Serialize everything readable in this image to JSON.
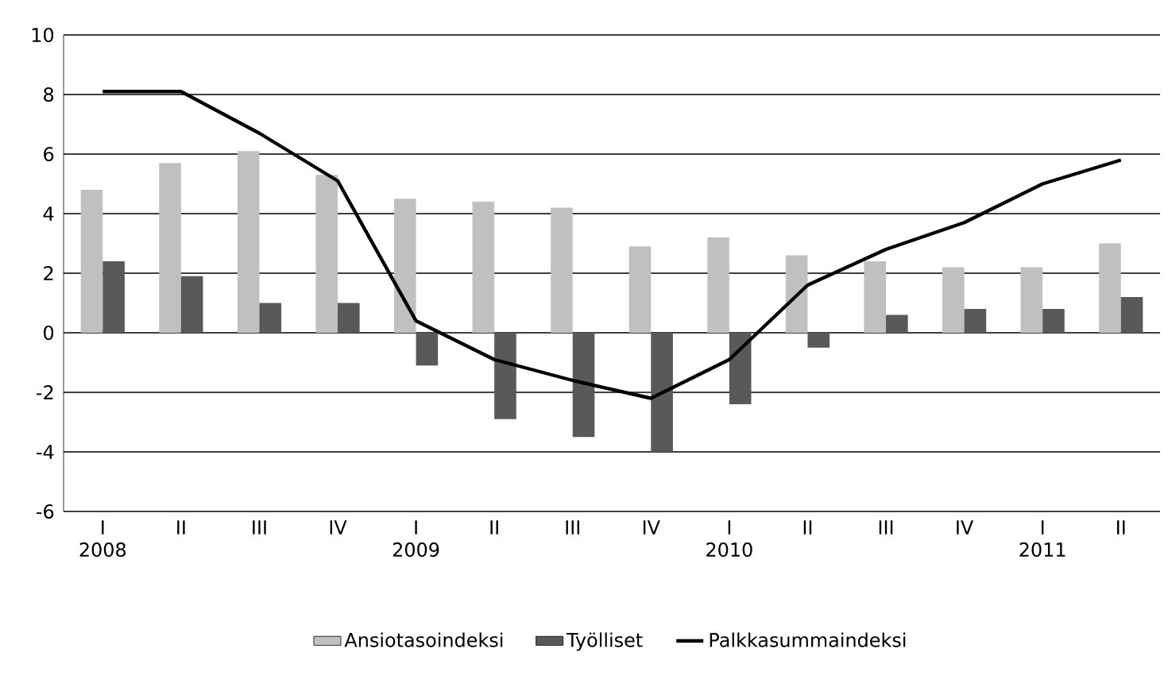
{
  "chart_data": {
    "type": "bar",
    "categories": [
      "I",
      "II",
      "III",
      "IV",
      "I",
      "II",
      "III",
      "IV",
      "I",
      "II",
      "III",
      "IV",
      "I",
      "II"
    ],
    "annotations": [
      "2008",
      "2009",
      "2010",
      "2011"
    ],
    "series": [
      {
        "name": "Ansiotasoindeksi",
        "color": "#c0c0c0",
        "values": [
          4.8,
          5.7,
          6.1,
          5.3,
          4.5,
          4.4,
          4.2,
          2.9,
          3.2,
          2.6,
          2.4,
          2.2,
          2.2,
          3.0
        ]
      },
      {
        "name": "Työlliset",
        "color": "#595959",
        "values": [
          2.4,
          1.9,
          1.0,
          1.0,
          -1.1,
          -2.9,
          -3.5,
          -4.0,
          -2.4,
          -0.5,
          0.6,
          0.8,
          0.8,
          1.2
        ]
      },
      {
        "name": "Palkkasummaindeksi",
        "color": "#000000",
        "type": "line",
        "values": [
          8.1,
          8.1,
          6.7,
          5.1,
          0.4,
          -0.9,
          -1.6,
          -2.2,
          -0.9,
          1.6,
          2.8,
          3.7,
          5.0,
          5.8
        ]
      }
    ],
    "ylim": [
      -6,
      10
    ],
    "yticks": [
      -6,
      -4,
      -2,
      0,
      2,
      4,
      6,
      8,
      10
    ],
    "grid": "y",
    "legend": "bottom"
  }
}
